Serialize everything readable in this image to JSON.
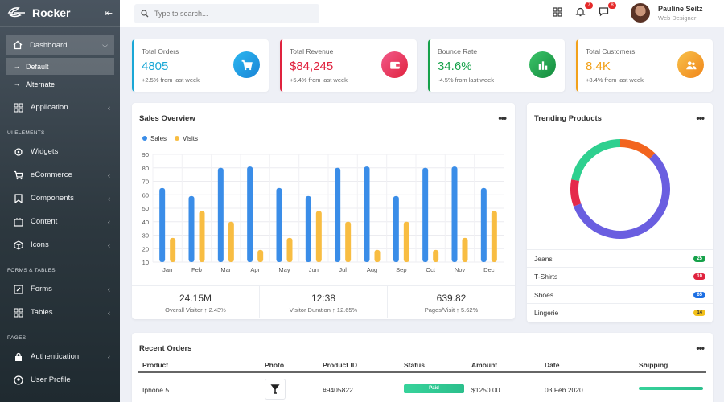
{
  "brand": {
    "name": "Rocker"
  },
  "sidebar": {
    "dashboard": "Dashboard",
    "sub": [
      "Default",
      "Alternate"
    ],
    "application": "Application",
    "sections": [
      "UI ELEMENTS",
      "FORMS & TABLES",
      "PAGES"
    ],
    "ui_items": [
      "Widgets",
      "eCommerce",
      "Components",
      "Content",
      "Icons"
    ],
    "form_items": [
      "Forms",
      "Tables"
    ],
    "page_items": [
      "Authentication",
      "User Profile"
    ]
  },
  "topbar": {
    "search_placeholder": "Type to search...",
    "notif_count": "7",
    "msg_count": "8",
    "user_name": "Pauline Seitz",
    "user_role": "Web Designer"
  },
  "stats": [
    {
      "title": "Total Orders",
      "value": "4805",
      "sub": "+2.5% from last week",
      "color": "#1aa7d6",
      "icon": "cart-icon"
    },
    {
      "title": "Total Revenue",
      "value": "$84,245",
      "sub": "+5.4% from last week",
      "color": "#e0223e",
      "icon": "wallet-icon"
    },
    {
      "title": "Bounce Rate",
      "value": "34.6%",
      "sub": "-4.5% from last week",
      "color": "#16a14a",
      "icon": "bar-chart-icon"
    },
    {
      "title": "Total Customers",
      "value": "8.4K",
      "sub": "+8.4% from last week",
      "color": "#f2a11a",
      "icon": "users-icon"
    }
  ],
  "sales_overview": {
    "title": "Sales Overview",
    "summary": [
      {
        "value": "24.15M",
        "label": "Overall Visitor ↑ 2.43%"
      },
      {
        "value": "12:38",
        "label": "Visitor Duration ↑ 12.65%"
      },
      {
        "value": "639.82",
        "label": "Pages/Visit ↑ 5.62%"
      }
    ]
  },
  "chart_data": [
    {
      "type": "bar",
      "categories": [
        "Jan",
        "Feb",
        "Mar",
        "Apr",
        "May",
        "Jun",
        "Jul",
        "Aug",
        "Sep",
        "Oct",
        "Nov",
        "Dec"
      ],
      "series": [
        {
          "name": "Sales",
          "color": "#3a8de8",
          "values": [
            65,
            59,
            80,
            81,
            65,
            59,
            80,
            81,
            59,
            80,
            81,
            65
          ]
        },
        {
          "name": "Visits",
          "color": "#f8bd42",
          "values": [
            28,
            48,
            40,
            19,
            28,
            48,
            40,
            19,
            40,
            19,
            28,
            48
          ]
        }
      ],
      "yticks": [
        10,
        20,
        30,
        40,
        50,
        60,
        70,
        80,
        90
      ],
      "ylim": [
        10,
        90
      ],
      "legend": "top-left",
      "grid": true
    },
    {
      "type": "pie",
      "donut": true,
      "labels": [
        "Jeans",
        "T-Shirts",
        "Shoes",
        "Lingerie"
      ],
      "values": [
        25,
        10,
        65,
        14
      ],
      "colors": [
        "#2ed08f",
        "#e52a4b",
        "#6a5ee0",
        "#f2641e"
      ],
      "segment_order": [
        "Lingerie",
        "Shoes",
        "T-Shirts",
        "Jeans"
      ]
    }
  ],
  "trending": {
    "title": "Trending Products",
    "items": [
      {
        "name": "Jeans",
        "count": "25",
        "color": "#16a14a"
      },
      {
        "name": "T-Shirts",
        "count": "10",
        "color": "#e0223e"
      },
      {
        "name": "Shoes",
        "count": "65",
        "color": "#1b6ee3"
      },
      {
        "name": "Lingerie",
        "count": "14",
        "color": "#f2c01a"
      }
    ]
  },
  "orders": {
    "title": "Recent Orders",
    "headers": [
      "Product",
      "Photo",
      "Product ID",
      "Status",
      "Amount",
      "Date",
      "Shipping"
    ],
    "rows": [
      {
        "product": "Iphone 5",
        "id": "#9405822",
        "status": "Paid",
        "amount": "$1250.00",
        "date": "03 Feb 2020",
        "shipping": 1.0
      }
    ]
  }
}
